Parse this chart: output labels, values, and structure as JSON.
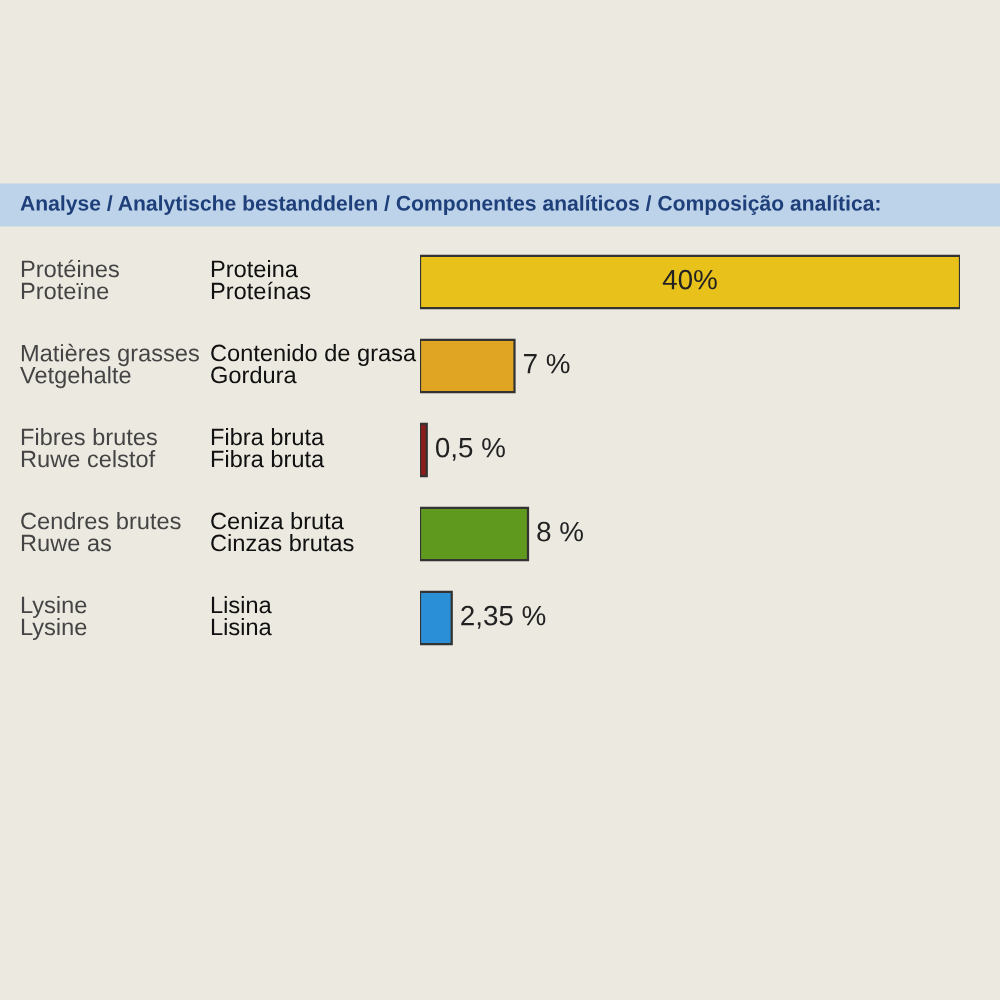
{
  "chart_data": {
    "type": "bar",
    "orientation": "horizontal",
    "title": "Analyse / Analytische bestanddelen / Componentes analíticos / Composição analítica:",
    "categories": [
      "Protéines\nProteïne",
      "Matières grasses\nVetgehalte",
      "Fibres brutes\nRuwe celstof",
      "Cendres brutes\nRuwe as",
      "Lysine\nLysine"
    ],
    "y2_categories": [
      "Proteina\nProteínas",
      "Contenido de grasa\nGordura",
      "Fibra bruta\nFibra bruta",
      "Ceniza bruta\nCinzas brutas",
      "Lisina\nLisina"
    ],
    "values": [
      40,
      7,
      0.5,
      8,
      2.35
    ],
    "colors": [
      "#e8c21a",
      "#e0a623",
      "#8a1c1c",
      "#5f9a1f",
      "#2a8fd6"
    ],
    "value_labels": [
      "40%",
      "7 %",
      "0,5 %",
      "8 %",
      "2,35 %"
    ]
  }
}
